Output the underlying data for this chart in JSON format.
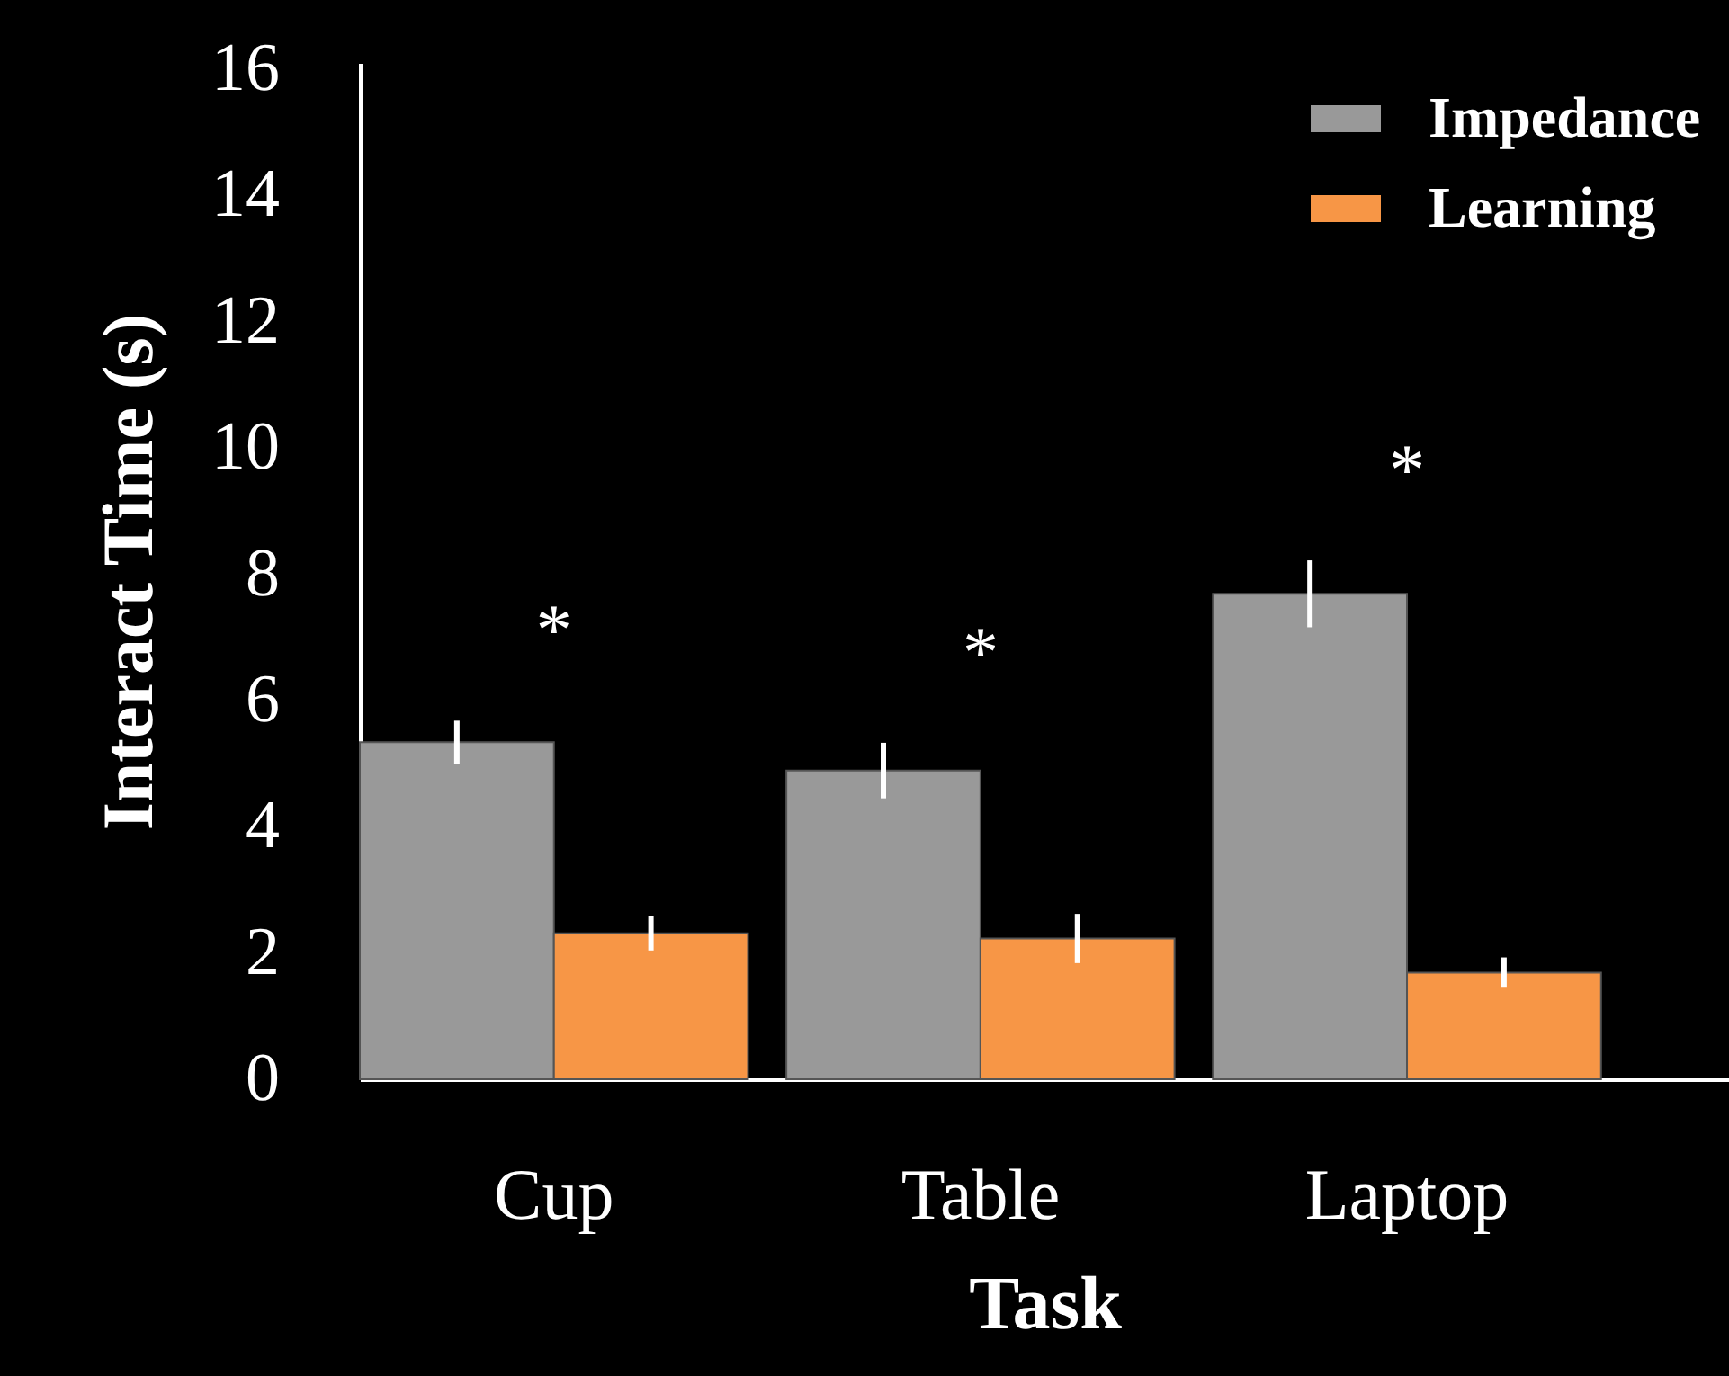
{
  "chart_data": {
    "type": "bar",
    "xlabel": "Task",
    "ylabel": "Interact Time (s)",
    "categories": [
      "Cup",
      "Table",
      "Laptop"
    ],
    "series": [
      {
        "name": "Impedance",
        "color": "#999999",
        "values": [
          5.34,
          4.89,
          7.69
        ],
        "errors": [
          0.34,
          0.44,
          0.53
        ]
      },
      {
        "name": "Learning",
        "color": "#f79646",
        "values": [
          2.31,
          2.23,
          1.69
        ],
        "errors": [
          0.27,
          0.39,
          0.24
        ]
      }
    ],
    "ylim": [
      0,
      16.1
    ],
    "yticks": [
      0,
      2,
      4,
      6,
      8,
      10,
      12,
      14,
      16
    ],
    "grid": false,
    "legend": "top right",
    "annotations": [
      "*",
      "*",
      "*"
    ]
  }
}
